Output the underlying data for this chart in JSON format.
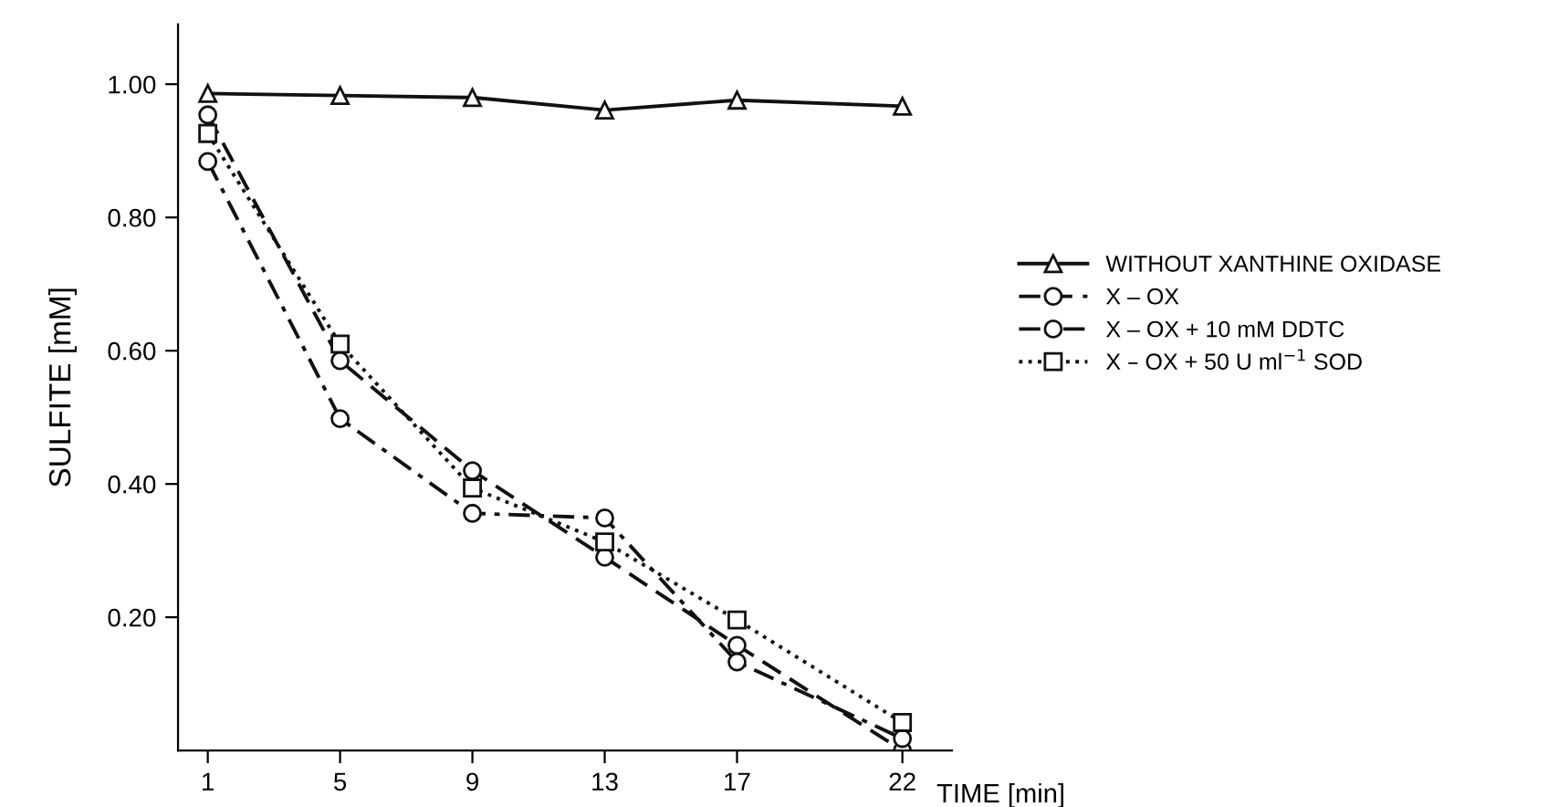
{
  "chart_data": {
    "type": "line",
    "xlabel": "TIME [min]",
    "ylabel": "SULFITE [mM]",
    "x": [
      1,
      5,
      9,
      13,
      17,
      22
    ],
    "xlim": [
      0.1,
      23.5
    ],
    "xticks": [
      1,
      5,
      9,
      13,
      17,
      22
    ],
    "ylim": [
      0,
      1.09
    ],
    "yticks": [
      {
        "value": 0.2,
        "label": "0.20"
      },
      {
        "value": 0.4,
        "label": "0.40"
      },
      {
        "value": 0.6,
        "label": "0.60"
      },
      {
        "value": 0.8,
        "label": "0.80"
      },
      {
        "value": 1.0,
        "label": "1.00"
      }
    ],
    "grid": false,
    "legend": "right",
    "series": [
      {
        "name": "WITHOUT XANTHINE OXIDASE",
        "color": "#111111",
        "marker": "triangle",
        "line_style": "solid",
        "values": [
          0.986,
          0.983,
          0.98,
          0.961,
          0.976,
          0.967
        ]
      },
      {
        "name": "X – OX",
        "color": "#111111",
        "marker": "circle",
        "line_style": "dashed",
        "values": [
          0.954,
          0.585,
          0.42,
          0.29,
          0.158,
          0.0
        ]
      },
      {
        "name": "X – OX + 10 mM DDTC",
        "color": "#111111",
        "marker": "circle",
        "line_style": "dashdot",
        "values": [
          0.884,
          0.498,
          0.356,
          0.349,
          0.133,
          0.018
        ]
      },
      {
        "name": "X – OX + 50 U ml$^{−1}$ SOD",
        "color": "#111111",
        "marker": "square",
        "line_style": "dotted",
        "values": [
          0.926,
          0.61,
          0.394,
          0.313,
          0.196,
          0.042
        ]
      }
    ]
  }
}
